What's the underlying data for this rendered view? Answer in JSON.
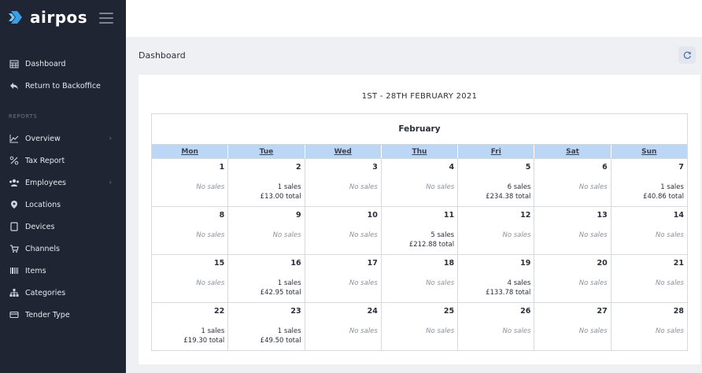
{
  "app": {
    "brand_name": "airpos",
    "page_title": "Dashboard",
    "colors": {
      "sidebar_bg": "#1f2532",
      "weekday_header_bg": "#bcd6f6",
      "content_bg": "#eef0f4"
    }
  },
  "sidebar": {
    "top_items": [
      {
        "label": "Dashboard",
        "icon": "calendar-icon"
      },
      {
        "label": "Return to Backoffice",
        "icon": "reply-arrow-icon"
      }
    ],
    "section_label": "REPORTS",
    "report_items": [
      {
        "label": "Overview",
        "icon": "line-chart-icon",
        "has_submenu": true
      },
      {
        "label": "Tax Report",
        "icon": "percent-icon"
      },
      {
        "label": "Employees",
        "icon": "users-icon",
        "has_submenu": true
      },
      {
        "label": "Locations",
        "icon": "map-pin-icon"
      },
      {
        "label": "Devices",
        "icon": "tablet-icon"
      },
      {
        "label": "Channels",
        "icon": "cart-icon"
      },
      {
        "label": "Items",
        "icon": "barcode-icon"
      },
      {
        "label": "Categories",
        "icon": "sitemap-icon"
      },
      {
        "label": "Tender Type",
        "icon": "credit-card-icon"
      }
    ]
  },
  "calendar": {
    "range_title": "1ST - 28TH FEBRUARY 2021",
    "month": "February",
    "weekdays": [
      "Mon",
      "Tue",
      "Wed",
      "Thu",
      "Fri",
      "Sat",
      "Sun"
    ],
    "no_sales_text": "No sales",
    "weeks": [
      [
        {
          "day": "1",
          "sales": null,
          "total": null
        },
        {
          "day": "2",
          "sales": "1 sales",
          "total": "£13.00 total"
        },
        {
          "day": "3",
          "sales": null,
          "total": null
        },
        {
          "day": "4",
          "sales": null,
          "total": null
        },
        {
          "day": "5",
          "sales": "6 sales",
          "total": "£234.38 total"
        },
        {
          "day": "6",
          "sales": null,
          "total": null
        },
        {
          "day": "7",
          "sales": "1 sales",
          "total": "£40.86 total"
        }
      ],
      [
        {
          "day": "8",
          "sales": null,
          "total": null
        },
        {
          "day": "9",
          "sales": null,
          "total": null
        },
        {
          "day": "10",
          "sales": null,
          "total": null
        },
        {
          "day": "11",
          "sales": "5 sales",
          "total": "£212.88 total"
        },
        {
          "day": "12",
          "sales": null,
          "total": null
        },
        {
          "day": "13",
          "sales": null,
          "total": null
        },
        {
          "day": "14",
          "sales": null,
          "total": null
        }
      ],
      [
        {
          "day": "15",
          "sales": null,
          "total": null
        },
        {
          "day": "16",
          "sales": "1 sales",
          "total": "£42.95 total"
        },
        {
          "day": "17",
          "sales": null,
          "total": null
        },
        {
          "day": "18",
          "sales": null,
          "total": null
        },
        {
          "day": "19",
          "sales": "4 sales",
          "total": "£133.78 total"
        },
        {
          "day": "20",
          "sales": null,
          "total": null
        },
        {
          "day": "21",
          "sales": null,
          "total": null
        }
      ],
      [
        {
          "day": "22",
          "sales": "1 sales",
          "total": "£19.30 total"
        },
        {
          "day": "23",
          "sales": "1 sales",
          "total": "£49.50 total"
        },
        {
          "day": "24",
          "sales": null,
          "total": null
        },
        {
          "day": "25",
          "sales": null,
          "total": null
        },
        {
          "day": "26",
          "sales": null,
          "total": null
        },
        {
          "day": "27",
          "sales": null,
          "total": null
        },
        {
          "day": "28",
          "sales": null,
          "total": null
        }
      ]
    ]
  }
}
